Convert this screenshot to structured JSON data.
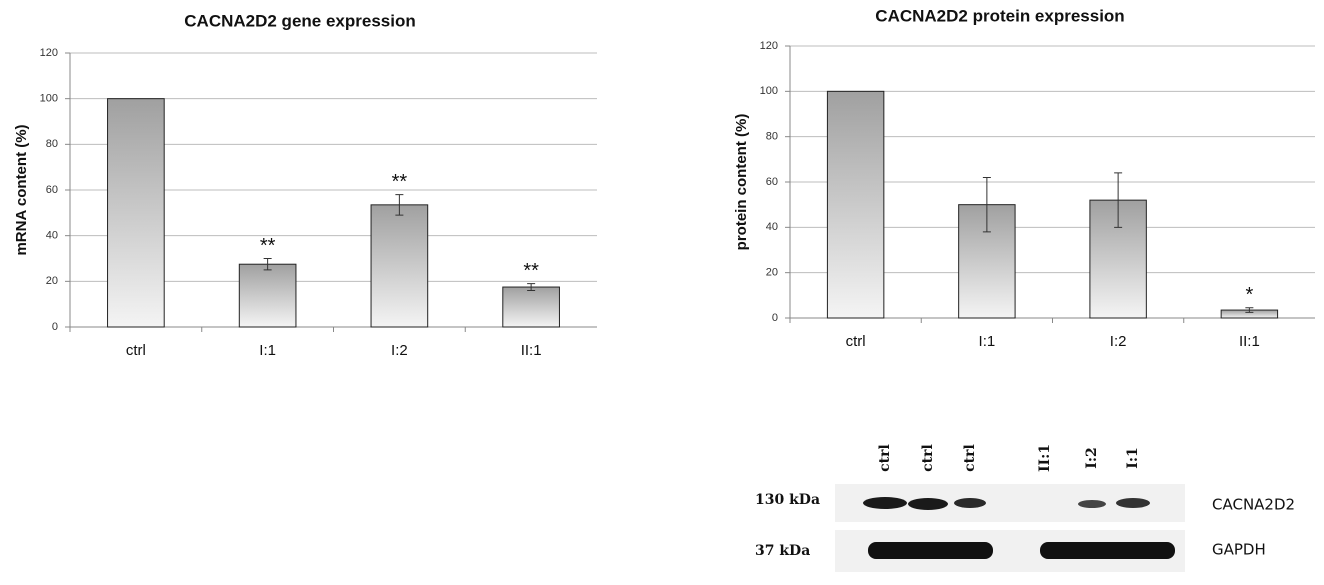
{
  "chart_data": [
    {
      "type": "bar",
      "title": "CACNA2D2 gene expression",
      "y_label": "mRNA content (%)",
      "categories": [
        "ctrl",
        "I:1",
        "I:2",
        "II:1"
      ],
      "values": [
        100,
        27.5,
        53.5,
        17.5
      ],
      "errors": [
        null,
        2.5,
        4.5,
        1.5
      ],
      "annotations": [
        null,
        "**",
        "**",
        "**"
      ],
      "color": "#a0a0a0",
      "ylim": [
        0,
        120
      ],
      "yticks": [
        0,
        20,
        40,
        60,
        80,
        100,
        120
      ],
      "grid": true
    },
    {
      "type": "bar",
      "title": "CACNA2D2 protein expression",
      "y_label": "protein content (%)",
      "categories": [
        "ctrl",
        "I:1",
        "I:2",
        "II:1"
      ],
      "values": [
        100,
        50,
        52,
        3.5
      ],
      "errors": [
        null,
        12,
        12,
        1
      ],
      "annotations": [
        null,
        null,
        null,
        "*"
      ],
      "color": "#a0a0a0",
      "ylim": [
        0,
        120
      ],
      "yticks": [
        0,
        20,
        40,
        60,
        80,
        100,
        120
      ],
      "grid": true
    }
  ],
  "blot": {
    "lanes": [
      "ctrl",
      "ctrl",
      "ctrl",
      "II:1",
      "I:2",
      "I:1"
    ],
    "markers": [
      "130 kDa",
      "37 kDa"
    ],
    "proteins": [
      "CACNA2D2",
      "GAPDH"
    ]
  }
}
